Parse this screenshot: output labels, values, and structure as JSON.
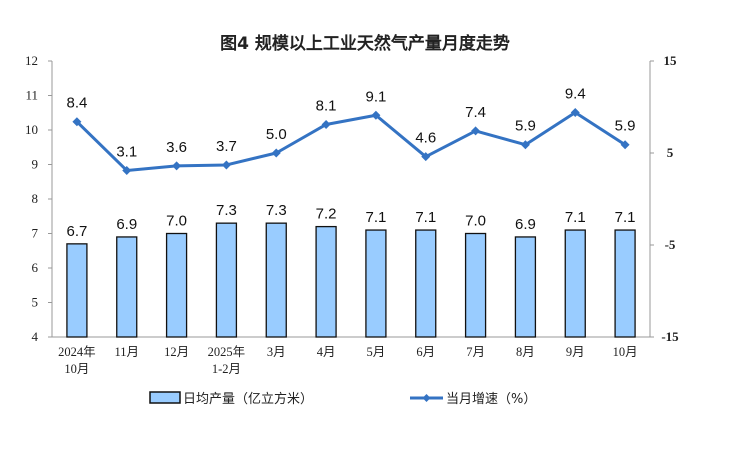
{
  "chart_data": {
    "type": "bar+line",
    "title": "图4  规模以上工业天然气产量月度走势",
    "categories": [
      [
        "2024年",
        "10月"
      ],
      [
        "11月"
      ],
      [
        "12月"
      ],
      [
        "2025年",
        "1-2月"
      ],
      [
        "3月"
      ],
      [
        "4月"
      ],
      [
        "5月"
      ],
      [
        "6月"
      ],
      [
        "7月"
      ],
      [
        "8月"
      ],
      [
        "9月"
      ],
      [
        "10月"
      ]
    ],
    "series": [
      {
        "name": "日均产量（亿立方米）",
        "type": "bar",
        "axis": "left",
        "color": "#99CCFF",
        "values": [
          6.7,
          6.9,
          7.0,
          7.3,
          7.3,
          7.2,
          7.1,
          7.1,
          7.0,
          6.9,
          7.1,
          7.1
        ]
      },
      {
        "name": "当月增速（%）",
        "type": "line",
        "axis": "right",
        "color": "#3473C3",
        "values": [
          8.4,
          3.1,
          3.6,
          3.7,
          5.0,
          8.1,
          9.1,
          4.6,
          7.4,
          5.9,
          9.4,
          5.9
        ]
      }
    ],
    "left_axis": {
      "ylim": [
        4,
        12
      ],
      "ticks": [
        4,
        5,
        6,
        7,
        8,
        9,
        10,
        11,
        12
      ]
    },
    "right_axis": {
      "ylim": [
        -15,
        15
      ],
      "ticks": [
        -15,
        -5,
        5,
        15
      ]
    },
    "legend": "bottom",
    "grid": false
  }
}
